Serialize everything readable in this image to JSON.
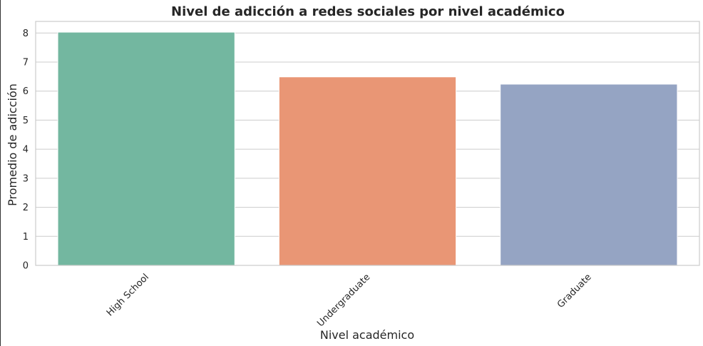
{
  "chart_data": {
    "type": "bar",
    "title": "Nivel de adicción a redes sociales por nivel académico",
    "xlabel": "Nivel académico",
    "ylabel": "Promedio de adicción",
    "categories": [
      "High School",
      "Undergraduate",
      "Graduate"
    ],
    "values": [
      8.03,
      6.49,
      6.24
    ],
    "colors": [
      "#73b7a0",
      "#e99675",
      "#95a4c3"
    ],
    "ylim": [
      0,
      8.4
    ],
    "yticks": [
      "0",
      "1",
      "2",
      "3",
      "4",
      "5",
      "6",
      "7",
      "8"
    ],
    "grid": true,
    "legend": "none"
  }
}
